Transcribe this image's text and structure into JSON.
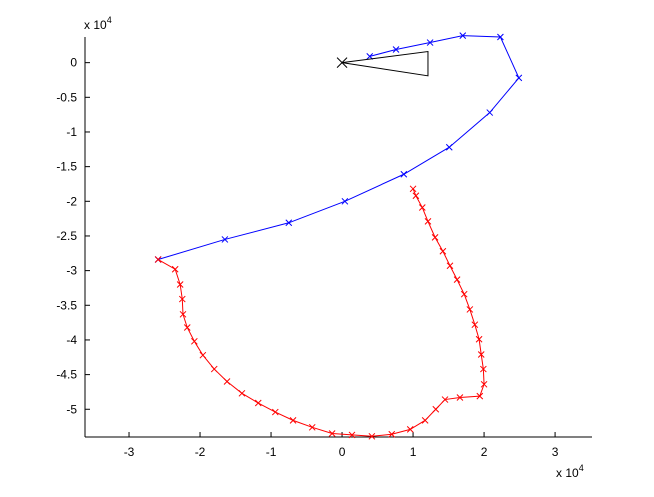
{
  "chart_data": {
    "type": "line",
    "xlim": [
      -3.62,
      3.52
    ],
    "ylim": [
      -5.4,
      0.37
    ],
    "xticks": [
      -3,
      -2,
      -1,
      0,
      1,
      2,
      3
    ],
    "yticks": [
      0,
      -0.5,
      -1,
      -1.5,
      -2,
      -2.5,
      -3,
      -3.5,
      -4,
      -4.5,
      -5
    ],
    "x_multiplier": {
      "text": "x 10",
      "power": 4
    },
    "y_multiplier": {
      "text": "x 10",
      "power": 4
    },
    "grid": false,
    "series": [
      {
        "color": "#0000ff",
        "marker": "x",
        "line": true,
        "x": [
          -2.59,
          -1.65,
          -0.75,
          0.04,
          0.87,
          1.51,
          2.08,
          2.49,
          2.23,
          1.7,
          1.24,
          0.76,
          0.39
        ],
        "values": [
          -2.84,
          -2.55,
          -2.31,
          -2.0,
          -1.61,
          -1.22,
          -0.72,
          -0.22,
          0.37,
          0.39,
          0.29,
          0.19,
          0.09
        ]
      },
      {
        "color": "#ff0000",
        "marker": "x",
        "line": true,
        "x": [
          -2.59,
          -2.35,
          -2.28,
          -2.25,
          -2.24,
          -2.18,
          -2.08,
          -1.96,
          -1.8,
          -1.62,
          -1.41,
          -1.18,
          -0.94,
          -0.69,
          -0.42,
          -0.14,
          0.14,
          0.42,
          0.7,
          0.96,
          1.17,
          1.32,
          1.45,
          1.66,
          1.94,
          2.0,
          1.99,
          1.96,
          1.93,
          1.87,
          1.8,
          1.72,
          1.62,
          1.52,
          1.42,
          1.31,
          1.21,
          1.13,
          1.04,
          1.0
        ],
        "values": [
          -2.84,
          -2.98,
          -3.2,
          -3.41,
          -3.63,
          -3.82,
          -4.02,
          -4.22,
          -4.42,
          -4.6,
          -4.77,
          -4.91,
          -5.04,
          -5.16,
          -5.26,
          -5.35,
          -5.37,
          -5.39,
          -5.36,
          -5.29,
          -5.16,
          -5.0,
          -4.86,
          -4.83,
          -4.81,
          -4.64,
          -4.42,
          -4.21,
          -3.99,
          -3.78,
          -3.56,
          -3.34,
          -3.13,
          -2.93,
          -2.72,
          -2.52,
          -2.29,
          -2.09,
          -1.92,
          -1.82
        ]
      },
      {
        "color": "#000000",
        "marker": "none",
        "line": true,
        "x": [
          0,
          1.21,
          1.21,
          0
        ],
        "values": [
          0,
          0.16,
          -0.19,
          0
        ]
      },
      {
        "color": "#000000",
        "marker": "bigx",
        "line": false,
        "x": [
          0
        ],
        "values": [
          0
        ]
      }
    ]
  }
}
